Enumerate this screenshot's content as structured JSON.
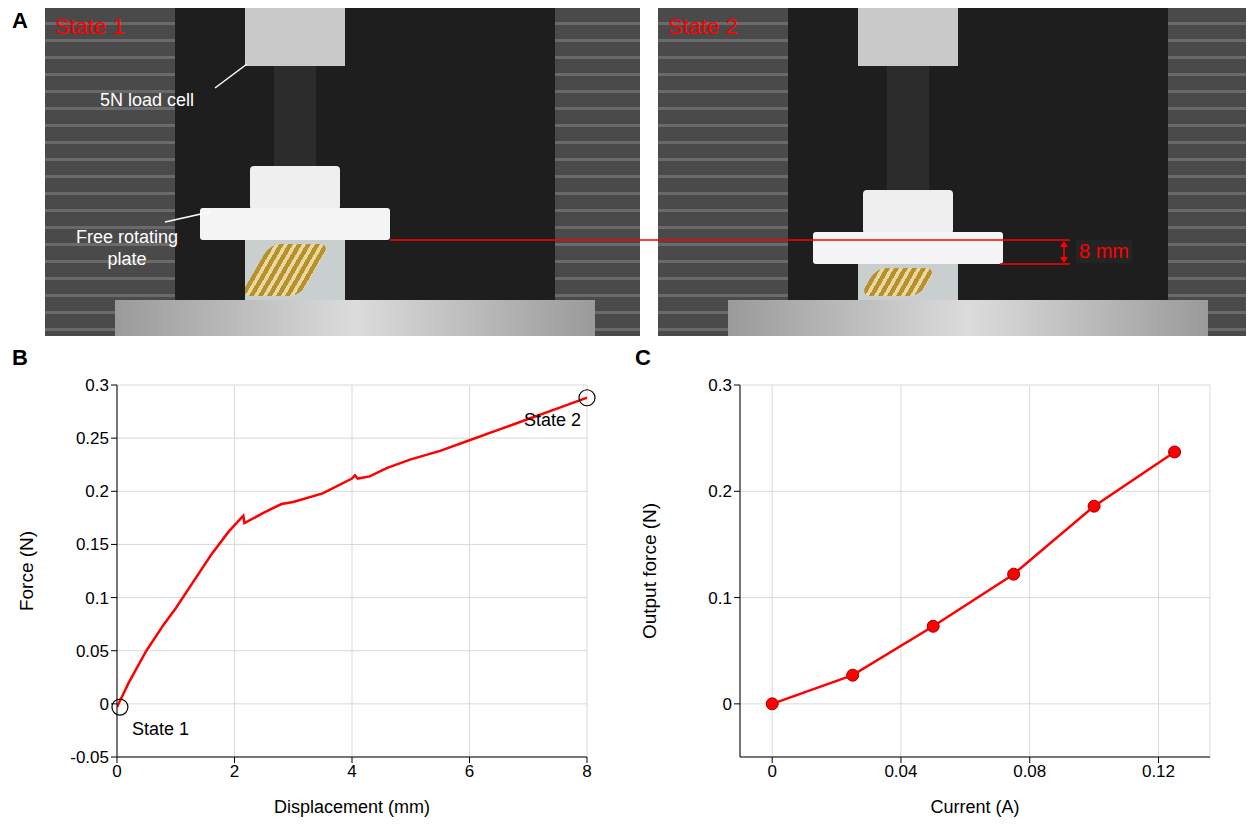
{
  "panel_a": {
    "panel": "A",
    "photos": [
      {
        "title": "State 1",
        "labels": [
          "5N load cell",
          "Free rotating plate"
        ]
      },
      {
        "title": "State 2"
      }
    ],
    "annotation": "8 mm"
  },
  "chart_data": [
    {
      "panel": "B",
      "type": "line",
      "x": [
        0,
        0.2,
        0.5,
        0.8,
        1.0,
        1.3,
        1.6,
        1.9,
        2.15,
        2.17,
        2.5,
        2.8,
        3.0,
        3.5,
        4.0,
        4.05,
        4.1,
        4.3,
        4.6,
        5.0,
        5.5,
        6.0,
        6.5,
        7.0,
        7.5,
        8.0
      ],
      "values": [
        -0.003,
        0.02,
        0.05,
        0.075,
        0.09,
        0.115,
        0.14,
        0.162,
        0.177,
        0.17,
        0.18,
        0.188,
        0.19,
        0.198,
        0.212,
        0.215,
        0.212,
        0.214,
        0.222,
        0.23,
        0.238,
        0.248,
        0.258,
        0.268,
        0.278,
        0.288
      ],
      "color": "#ff0000",
      "x_label": "Displacement (mm)",
      "y_label": "Force (N)",
      "xlim": [
        0,
        8
      ],
      "xticks": [
        0,
        2,
        4,
        6,
        8
      ],
      "ylim": [
        -0.05,
        0.3
      ],
      "yticks": [
        -0.05,
        0,
        0.05,
        0.1,
        0.15,
        0.2,
        0.25,
        0.3
      ],
      "grid": true,
      "annotations": [
        {
          "text": "State 1",
          "x": 0.05,
          "y": -0.003
        },
        {
          "text": "State 2",
          "x": 8,
          "y": 0.288
        }
      ]
    },
    {
      "panel": "C",
      "type": "line",
      "marker": "circle",
      "x": [
        0,
        0.025,
        0.05,
        0.075,
        0.1,
        0.125
      ],
      "values": [
        0,
        0.027,
        0.073,
        0.122,
        0.186,
        0.237
      ],
      "color": "#ff0000",
      "x_label": "Current (A)",
      "y_label": "Output force (N)",
      "xlim": [
        -0.01,
        0.136
      ],
      "xticks": [
        0,
        0.04,
        0.08,
        0.12
      ],
      "ylim": [
        -0.05,
        0.3
      ],
      "yticks": [
        0,
        0.1,
        0.2,
        0.3
      ],
      "grid": true
    }
  ]
}
